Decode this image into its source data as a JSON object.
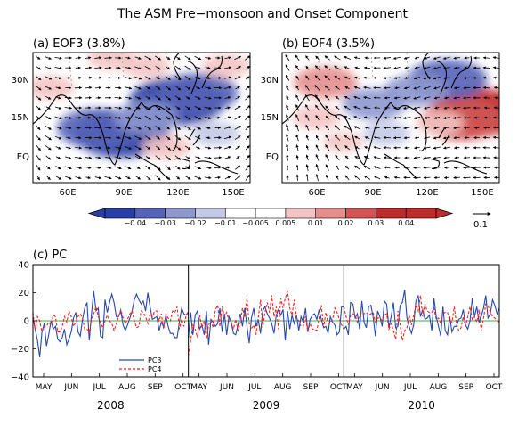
{
  "figure": {
    "title": "The ASM Pre−monsoon and Onset Component"
  },
  "colors": {
    "blue_scale": [
      "#2a3fa3",
      "#5563b8",
      "#8e98d0",
      "#c4c9e6"
    ],
    "red_scale": [
      "#f4c4c4",
      "#e68e8e",
      "#d25555",
      "#c02a2a"
    ],
    "land_outline": "#000000",
    "pc3": "#2547b0",
    "pc4": "#ff2020",
    "zero_line": "#3cb043"
  },
  "maps": [
    {
      "label": "(a) EOF3 (3.8%)",
      "lat_ticks": [
        "30N",
        "15N",
        "EQ"
      ],
      "lon_ticks": [
        "60E",
        "90E",
        "120E",
        "150E"
      ],
      "anomalies": [
        {
          "lon": 86,
          "lat": 8,
          "value": -0.04
        },
        {
          "lon": 72,
          "lat": 10,
          "value": -0.03
        },
        {
          "lon": 118,
          "lat": 20,
          "value": -0.04
        },
        {
          "lon": 130,
          "lat": 23,
          "value": -0.03
        },
        {
          "lon": 100,
          "lat": 14,
          "value": -0.02
        },
        {
          "lon": 140,
          "lat": 8,
          "value": -0.01
        },
        {
          "lon": 100,
          "lat": 33,
          "value": 0.01
        },
        {
          "lon": 80,
          "lat": 36,
          "value": 0.01
        },
        {
          "lon": 146,
          "lat": 33,
          "value": 0.01
        },
        {
          "lon": 45,
          "lat": 25,
          "value": 0.01
        },
        {
          "lon": 112,
          "lat": 3,
          "value": 0.01
        }
      ]
    },
    {
      "label": "(b) EOF4 (3.5%)",
      "lat_ticks": [
        "30N",
        "15N",
        "EQ"
      ],
      "lon_ticks": [
        "60E",
        "90E",
        "120E",
        "150E"
      ],
      "anomalies": [
        {
          "lon": 148,
          "lat": 16,
          "value": 0.04
        },
        {
          "lon": 138,
          "lat": 13,
          "value": 0.03
        },
        {
          "lon": 126,
          "lat": 12,
          "value": 0.01
        },
        {
          "lon": 60,
          "lat": 27,
          "value": 0.02
        },
        {
          "lon": 55,
          "lat": 14,
          "value": 0.01
        },
        {
          "lon": 130,
          "lat": 28,
          "value": -0.03
        },
        {
          "lon": 112,
          "lat": 24,
          "value": -0.02
        },
        {
          "lon": 88,
          "lat": 19,
          "value": -0.02
        },
        {
          "lon": 95,
          "lat": 8,
          "value": -0.01
        },
        {
          "lon": 70,
          "lat": 5,
          "value": 0.005
        }
      ]
    }
  ],
  "colorbar": {
    "labels": [
      "−0.04",
      "−0.03",
      "−0.02",
      "−0.01",
      "−0.005",
      "0.005",
      "0.01",
      "0.02",
      "0.03",
      "0.04"
    ]
  },
  "vector_key": {
    "label": "0.1"
  },
  "chart_data": {
    "type": "line",
    "title": "(c) PC",
    "ylim": [
      -40,
      40
    ],
    "yticks": [
      "40",
      "20",
      "0",
      "−20",
      "−40"
    ],
    "years": [
      "2008",
      "2009",
      "2010"
    ],
    "month_labels": [
      "MAY",
      "JUN",
      "JUL",
      "AUG",
      "SEP",
      "OCT"
    ],
    "series": [
      {
        "name": "PC3",
        "color": "#2547b0",
        "dash": "solid",
        "values": [
          [
            2,
            -6,
            -14,
            -26,
            -8,
            -2,
            -18,
            -10,
            0,
            -6,
            -4,
            -13,
            -15,
            -12,
            -6,
            -17,
            -13,
            -8,
            2,
            6,
            -8,
            -11,
            1,
            9,
            13,
            -14,
            5,
            21,
            7,
            9,
            -11,
            -12,
            15,
            6,
            13,
            19,
            13,
            3,
            3,
            7,
            -3,
            -7,
            -3,
            2,
            7,
            15,
            19,
            15,
            12,
            14,
            7,
            20,
            10,
            1,
            2,
            3,
            -7,
            -1,
            -4,
            4,
            -4,
            -9,
            -9,
            -12,
            -12,
            -1,
            9,
            5,
            4,
            6
          ],
          [
            -12,
            6,
            -10,
            4,
            7,
            -6,
            -3,
            -10,
            7,
            -17,
            1,
            -1,
            -4,
            -2,
            9,
            -8,
            5,
            -10,
            3,
            -1,
            -9,
            -10,
            -3,
            5,
            -4,
            9,
            -4,
            -16,
            2,
            9,
            -4,
            1,
            -9,
            7,
            10,
            5,
            2,
            -2,
            -9,
            4,
            8,
            4,
            8,
            -14,
            7,
            -6,
            4,
            -2,
            4,
            -7,
            3,
            -1,
            9,
            -8,
            1,
            4,
            5,
            1,
            8,
            1,
            -5,
            -4,
            -9,
            3,
            -1,
            -3,
            -10,
            -8,
            10,
            10
          ],
          [
            -6,
            -4,
            -10,
            13,
            12,
            2,
            5,
            -6,
            14,
            -1,
            -5,
            10,
            11,
            3,
            -11,
            7,
            3,
            -4,
            14,
            12,
            -5,
            3,
            13,
            -5,
            -4,
            11,
            13,
            22,
            2,
            -4,
            -9,
            -3,
            14,
            18,
            3,
            8,
            1,
            2,
            4,
            -7,
            16,
            3,
            -4,
            -11,
            10,
            -7,
            -10,
            3,
            -8,
            -4,
            -4,
            1,
            2,
            8,
            -3,
            -6,
            0,
            16,
            3,
            10,
            -1,
            3,
            9,
            18,
            2,
            5,
            15,
            11,
            5,
            9
          ]
        ]
      },
      {
        "name": "PC4",
        "color": "#ff2020",
        "dash": "dashed",
        "values": [
          [
            6,
            -7,
            3,
            0,
            -8,
            -4,
            -4,
            -1,
            -3,
            4,
            3,
            -8,
            -8,
            -4,
            3,
            -1,
            7,
            3,
            -4,
            -1,
            3,
            5,
            2,
            -6,
            -6,
            -8,
            1,
            5,
            10,
            3,
            -1,
            -5,
            0,
            4,
            0,
            -2,
            -7,
            -2,
            3,
            8,
            2,
            -2,
            1,
            5,
            7,
            0,
            -5,
            -4,
            7,
            6,
            3,
            -2,
            5,
            3,
            7,
            7,
            0,
            5,
            -6,
            5,
            2,
            0,
            7,
            6,
            10,
            -6,
            1,
            -4,
            4,
            7
          ],
          [
            -25,
            -14,
            -3,
            -6,
            -12,
            4,
            -5,
            0,
            -13,
            -3,
            0,
            -5,
            8,
            11,
            -4,
            10,
            3,
            6,
            0,
            -1,
            -6,
            1,
            -7,
            -2,
            9,
            3,
            16,
            -2,
            -6,
            -3,
            -10,
            2,
            15,
            -5,
            6,
            13,
            6,
            18,
            3,
            10,
            -6,
            16,
            9,
            16,
            21,
            9,
            4,
            15,
            2,
            0,
            -4,
            -4,
            3,
            -8,
            -2,
            -6,
            -6,
            -7,
            2,
            11,
            -5,
            6,
            -2,
            -1,
            1,
            9,
            6,
            1,
            -3,
            -6
          ],
          [
            10,
            3,
            -3,
            4,
            5,
            4,
            -1,
            4,
            6,
            5,
            6,
            4,
            5,
            6,
            -1,
            2,
            2,
            0,
            4,
            5,
            -6,
            -2,
            -7,
            -13,
            7,
            -3,
            -14,
            -7,
            -5,
            4,
            -3,
            4,
            11,
            7,
            18,
            3,
            12,
            7,
            6,
            6,
            9,
            1,
            2,
            -2,
            5,
            6,
            6,
            0,
            -1,
            10,
            -2,
            -7,
            -5,
            3,
            -4,
            3,
            10,
            1,
            3,
            -1,
            8,
            -7,
            2,
            12,
            11,
            6,
            3,
            2,
            0,
            -1
          ]
        ]
      }
    ]
  }
}
